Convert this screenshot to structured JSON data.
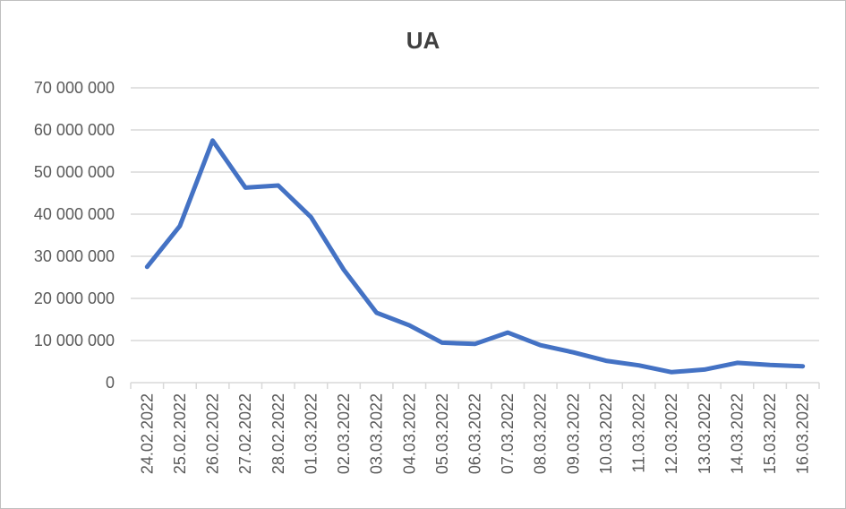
{
  "chart_data": {
    "type": "line",
    "title": "UA",
    "xlabel": "",
    "ylabel": "",
    "ylim": [
      0,
      70000000
    ],
    "yticks": [
      0,
      10000000,
      20000000,
      30000000,
      40000000,
      50000000,
      60000000,
      70000000
    ],
    "ytick_labels": [
      "0",
      "10 000 000",
      "20 000 000",
      "30 000 000",
      "40 000 000",
      "50 000 000",
      "60 000 000",
      "70 000 000"
    ],
    "categories": [
      "24.02.2022",
      "25.02.2022",
      "26.02.2022",
      "27.02.2022",
      "28.02.2022",
      "01.03.2022",
      "02.03.2022",
      "03.03.2022",
      "04.03.2022",
      "05.03.2022",
      "06.03.2022",
      "07.03.2022",
      "08.03.2022",
      "09.03.2022",
      "10.03.2022",
      "11.03.2022",
      "12.03.2022",
      "13.03.2022",
      "14.03.2022",
      "15.03.2022",
      "16.03.2022"
    ],
    "series": [
      {
        "values": [
          27500000,
          37200000,
          57500000,
          46300000,
          46800000,
          39300000,
          26800000,
          16600000,
          13600000,
          9500000,
          9200000,
          11900000,
          8900000,
          7200000,
          5200000,
          4100000,
          2500000,
          3100000,
          4700000,
          4200000,
          3900000
        ],
        "color": "#4472c4"
      }
    ],
    "grid": true,
    "legend": "none"
  }
}
